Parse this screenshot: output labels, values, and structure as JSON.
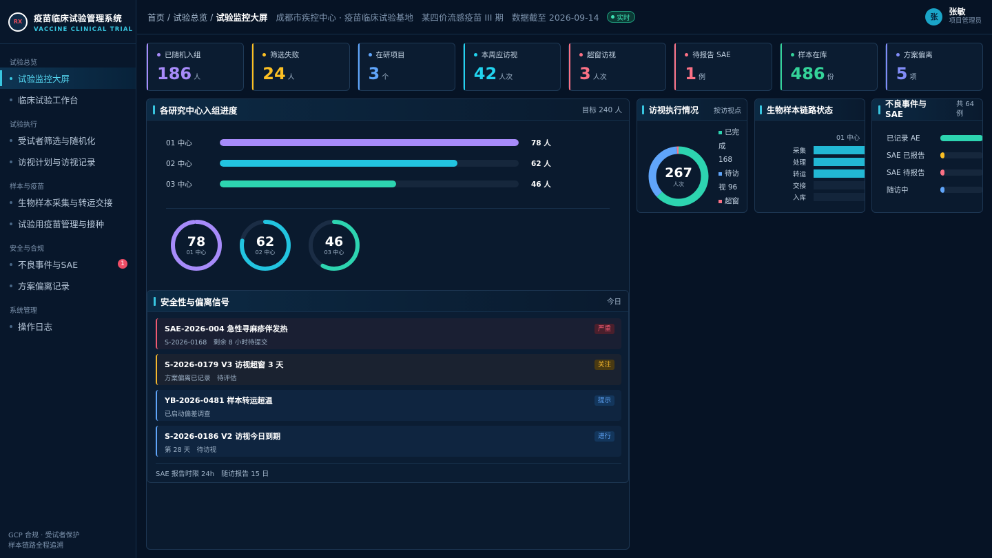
{
  "app": {
    "title": "疫苗临床试验管理系统",
    "subtitle": "VACCINE CLINICAL TRIAL",
    "logo_text": "RX"
  },
  "sidebar": {
    "groups": [
      {
        "label": "试验总览",
        "items": [
          {
            "label": "试验监控大屏"
          },
          {
            "label": "临床试验工作台"
          }
        ]
      },
      {
        "label": "试验执行",
        "items": [
          {
            "label": "受试者筛选与随机化"
          },
          {
            "label": "访视计划与访视记录"
          }
        ]
      },
      {
        "label": "样本与疫苗",
        "items": [
          {
            "label": "生物样本采集与转运交接"
          },
          {
            "label": "试验用疫苗管理与接种"
          }
        ]
      },
      {
        "label": "安全与合规",
        "items": [
          {
            "label": "不良事件与SAE",
            "badge": "1"
          },
          {
            "label": "方案偏离记录"
          }
        ]
      },
      {
        "label": "系统管理",
        "items": [
          {
            "label": "操作日志"
          }
        ]
      }
    ],
    "footer": [
      "GCP 合规 · 受试者保护",
      "样本链路全程追溯"
    ]
  },
  "topbar": {
    "crumbs": [
      "首页",
      "试验总览",
      "试验监控大屏"
    ],
    "site": "成都市疾控中心 · 疫苗临床试验基地",
    "trial": "某四价流感疫苗 III 期",
    "data_date": "数据截至 2026-09-14",
    "live": "实时",
    "user": {
      "avatar": "张",
      "name": "张敏",
      "role": "项目管理员"
    }
  },
  "kpis": [
    {
      "label": "已随机入组",
      "value": "186",
      "unit": "人",
      "color": "#a78bfa"
    },
    {
      "label": "筛选失败",
      "value": "24",
      "unit": "人",
      "color": "#fbbf24"
    },
    {
      "label": "在研项目",
      "value": "3",
      "unit": "个",
      "color": "#60a5fa"
    },
    {
      "label": "本周应访视",
      "value": "42",
      "unit": "人次",
      "color": "#22d3ee"
    },
    {
      "label": "超窗访视",
      "value": "3",
      "unit": "人次",
      "color": "#fb7185"
    },
    {
      "label": "待报告 SAE",
      "value": "1",
      "unit": "例",
      "color": "#fb7185"
    },
    {
      "label": "样本在库",
      "value": "486",
      "unit": "份",
      "color": "#34d399"
    },
    {
      "label": "方案偏离",
      "value": "5",
      "unit": "项",
      "color": "#818cf8"
    }
  ],
  "enroll": {
    "title": "各研究中心入组进度",
    "target": "目标 240 人",
    "bars": [
      {
        "label": "01 中心",
        "value": 78,
        "display": "78 人",
        "color": "#a78bfa"
      },
      {
        "label": "02 中心",
        "value": 62,
        "display": "62 人",
        "color": "#22c4e0"
      },
      {
        "label": "03 中心",
        "value": 46,
        "display": "46 人",
        "color": "#2dd4b0"
      }
    ],
    "bar_max": 78,
    "rings": [
      {
        "value": "78",
        "label": "01 中心",
        "fraction": 0.98,
        "color": "#a78bfa"
      },
      {
        "value": "62",
        "label": "02 中心",
        "fraction": 0.78,
        "color": "#22c4e0"
      },
      {
        "value": "46",
        "label": "03 中心",
        "fraction": 0.58,
        "color": "#2dd4b0"
      }
    ]
  },
  "visits": {
    "title": "访视执行情况",
    "right": "按访视点",
    "total": "267",
    "unit": "人次",
    "legend": [
      {
        "text": "已完",
        "color": "#2dd4b0"
      },
      {
        "text": "成"
      },
      {
        "text": "168"
      },
      {
        "text": "待访",
        "color": "#60a5fa"
      },
      {
        "text": "视 96"
      },
      {
        "text": "超窗",
        "color": "#fb7185"
      }
    ],
    "segments": [
      {
        "value": 168,
        "color": "#2dd4b0"
      },
      {
        "value": 96,
        "color": "#60a5fa"
      },
      {
        "value": 3,
        "color": "#fb7185"
      }
    ]
  },
  "samples": {
    "title": "生物样本链路状态",
    "center": "01 中心",
    "rows": [
      {
        "label": "采集",
        "fraction": 1.0
      },
      {
        "label": "处理",
        "fraction": 1.0
      },
      {
        "label": "转运",
        "fraction": 1.0
      },
      {
        "label": "交接",
        "fraction": 0
      },
      {
        "label": "入库",
        "fraction": 0
      }
    ]
  },
  "ae": {
    "title_a": "不良事件与",
    "title_b": "SAE",
    "total_a": "共 64",
    "total_b": "例",
    "rows": [
      {
        "label": "已记录 AE",
        "fraction": 1.0,
        "color": "#2dd4b0"
      },
      {
        "label": "SAE 已报告",
        "fraction": 0.1,
        "color": "#fbbf24"
      },
      {
        "label": "SAE 待报告",
        "fraction": 0.05,
        "color": "#fb7185"
      },
      {
        "label": "随访中",
        "fraction": 0.1,
        "color": "#60a5fa"
      }
    ]
  },
  "signals": {
    "title": "安全性与偏离信号",
    "right": "今日",
    "items": [
      {
        "title": "SAE-2026-004 急性寻麻疹伴发热",
        "desc": "S-2026-0168　剩余 8 小时待提交",
        "tag": "严重",
        "color": "#f05a72",
        "bg": "#1a1f33",
        "tagbg": "#4a1f2c"
      },
      {
        "title": "S-2026-0179 V3 访视超窗 3 天",
        "desc": "方案偏离已记录　待评估",
        "tag": "关注",
        "color": "#f5b82e",
        "bg": "#1a2230",
        "tagbg": "#4a3a12"
      },
      {
        "title": "YB-2026-0481 样本转运超温",
        "desc": "已启动偏差调查",
        "tag": "提示",
        "color": "#60a5fa",
        "bg": "#0f2540",
        "tagbg": "#13365c"
      },
      {
        "title": "S-2026-0186 V2 访视今日到期",
        "desc": "第 28 天　待访视",
        "tag": "进行",
        "color": "#60a5fa",
        "bg": "#0f2540",
        "tagbg": "#13365c"
      }
    ],
    "footer": "SAE 报告时限 24h　随访报告 15 日"
  }
}
